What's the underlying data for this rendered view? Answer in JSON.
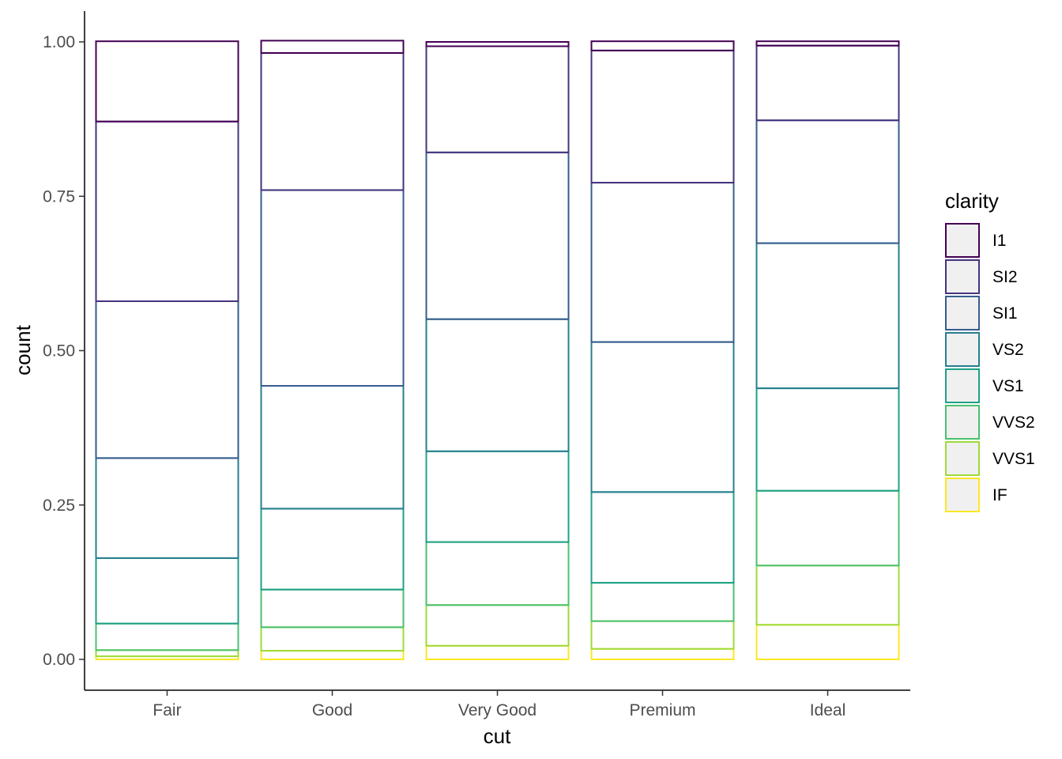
{
  "chart_data": {
    "type": "bar",
    "stacking": "fill",
    "categories": [
      "Fair",
      "Good",
      "Very Good",
      "Premium",
      "Ideal"
    ],
    "xlabel": "cut",
    "ylabel": "count",
    "ylim": [
      0,
      1
    ],
    "yticks": [
      0,
      0.25,
      0.5,
      0.75,
      1
    ],
    "ytick_labels": [
      "0.00",
      "0.25",
      "0.50",
      "0.75",
      "1.00"
    ],
    "grid": false,
    "fill": "none",
    "legend": {
      "title": "clarity",
      "position": "right",
      "key_fill": "#f0f0f0"
    },
    "stack_order": "IF at bottom, I1 at top",
    "series": [
      {
        "name": "I1",
        "color": "#440154",
        "values": [
          0.13,
          0.02,
          0.007,
          0.015,
          0.007
        ]
      },
      {
        "name": "SI2",
        "color": "#46337E",
        "values": [
          0.291,
          0.222,
          0.172,
          0.214,
          0.121
        ]
      },
      {
        "name": "SI1",
        "color": "#365C8D",
        "values": [
          0.254,
          0.317,
          0.27,
          0.258,
          0.199
        ]
      },
      {
        "name": "VS2",
        "color": "#277F8E",
        "values": [
          0.162,
          0.199,
          0.214,
          0.243,
          0.235
        ]
      },
      {
        "name": "VS1",
        "color": "#1FA187",
        "values": [
          0.106,
          0.131,
          0.147,
          0.147,
          0.166
        ]
      },
      {
        "name": "VVS2",
        "color": "#4AC16D",
        "values": [
          0.043,
          0.061,
          0.102,
          0.062,
          0.121
        ]
      },
      {
        "name": "VVS1",
        "color": "#9FDA3A",
        "values": [
          0.01,
          0.038,
          0.066,
          0.045,
          0.096
        ]
      },
      {
        "name": "IF",
        "color": "#FDE725",
        "values": [
          0.005,
          0.014,
          0.022,
          0.017,
          0.056
        ]
      }
    ]
  }
}
